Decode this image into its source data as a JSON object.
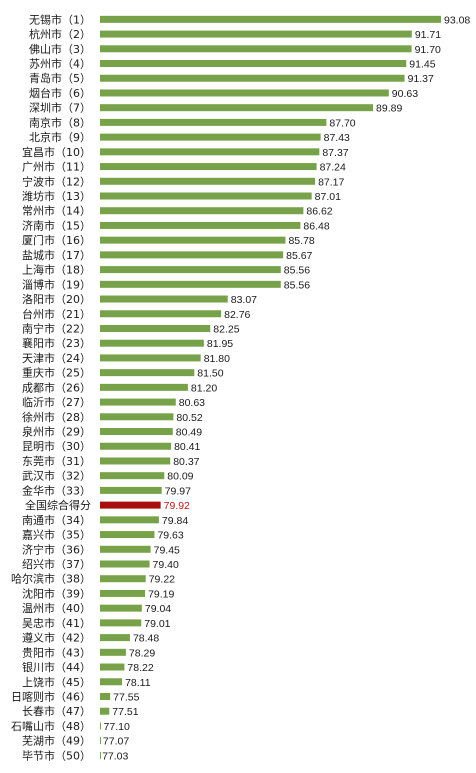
{
  "chart_data": {
    "type": "bar",
    "orientation": "horizontal",
    "title": "",
    "xlabel": "",
    "ylabel": "",
    "xlim": [
      0,
      93.08
    ],
    "grid": false,
    "legend": "none",
    "colors": {
      "bar": "#77a24a",
      "highlight": "#a80f0f"
    },
    "categories": [
      "无锡市（1）",
      "杭州市（2）",
      "佛山市（3）",
      "苏州市（4）",
      "青岛市（5）",
      "烟台市（6）",
      "深圳市（7）",
      "南京市（8）",
      "北京市（9）",
      "宜昌市（10）",
      "广州市（11）",
      "宁波市（12）",
      "潍坊市（13）",
      "常州市（14）",
      "济南市（15）",
      "厦门市（16）",
      "盐城市（17）",
      "上海市（18）",
      "淄博市（19）",
      "洛阳市（20）",
      "台州市（21）",
      "南宁市（22）",
      "襄阳市（23）",
      "天津市（24）",
      "重庆市（25）",
      "成都市（26）",
      "临沂市（27）",
      "徐州市（28）",
      "泉州市（29）",
      "昆明市（30）",
      "东莞市（31）",
      "武汉市（32）",
      "金华市（33）",
      "全国综合得分",
      "南通市（34）",
      "嘉兴市（35）",
      "济宁市（36）",
      "绍兴市（37）",
      "哈尔滨市（38）",
      "沈阳市（39）",
      "温州市（40）",
      "吴忠市（41）",
      "遵义市（42）",
      "贵阳市（43）",
      "银川市（44）",
      "上饶市（45）",
      "日喀则市（46）",
      "长春市（47）",
      "石嘴山市（48）",
      "芜湖市（49）",
      "毕节市（50）"
    ],
    "values": [
      "93.08",
      "91.71",
      "91.70",
      "91.45",
      "91.37",
      "90.63",
      "89.89",
      "87.70",
      "87.43",
      "87.37",
      "87.24",
      "87.17",
      "87.01",
      "86.62",
      "86.48",
      "85.78",
      "85.67",
      "85.56",
      "85.56",
      "83.07",
      "82.76",
      "82.25",
      "81.95",
      "81.80",
      "81.50",
      "81.20",
      "80.63",
      "80.52",
      "80.49",
      "80.41",
      "80.37",
      "80.09",
      "79.97",
      "79.92",
      "79.84",
      "79.63",
      "79.45",
      "79.40",
      "79.22",
      "79.19",
      "79.04",
      "79.01",
      "78.48",
      "78.29",
      "78.22",
      "78.11",
      "77.55",
      "77.51",
      "77.10",
      "77.07",
      "77.03"
    ],
    "highlight_category": "全国综合得分"
  }
}
